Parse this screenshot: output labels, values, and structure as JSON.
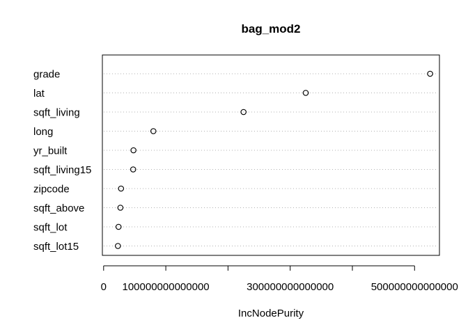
{
  "chart_data": {
    "type": "scatter",
    "title": "bag_mod2",
    "xlabel": "IncNodePurity",
    "ylabel": "",
    "xlim": [
      -2000000000000,
      540000000000000
    ],
    "x_ticks": [
      0,
      100000000000000,
      200000000000000,
      300000000000000,
      400000000000000,
      500000000000000
    ],
    "x_tick_labels": [
      "0",
      "100000000000000",
      "",
      "300000000000000",
      "",
      "500000000000000"
    ],
    "categories": [
      "grade",
      "lat",
      "sqft_living",
      "long",
      "yr_built",
      "sqft_living15",
      "zipcode",
      "sqft_above",
      "sqft_lot",
      "sqft_lot15"
    ],
    "values": [
      525000000000000,
      325000000000000,
      225000000000000,
      80000000000000,
      48000000000000,
      47500000000000,
      28000000000000,
      27000000000000,
      24000000000000,
      23000000000000
    ],
    "grid": true
  }
}
